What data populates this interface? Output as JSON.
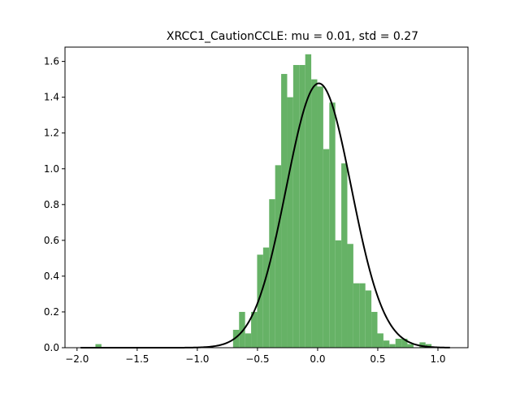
{
  "chart_data": {
    "type": "bar",
    "title": "XRCC1_CautionCCLE: mu = 0.01, std = 0.27",
    "xlabel": "",
    "ylabel": "",
    "xlim": [
      -2.1,
      1.25
    ],
    "ylim": [
      0,
      1.68
    ],
    "x_ticks": [
      -2.0,
      -1.5,
      -1.0,
      -0.5,
      0.0,
      0.5,
      1.0
    ],
    "x_tick_labels": [
      "−2.0",
      "−1.5",
      "−1.0",
      "−0.5",
      "0.0",
      "0.5",
      "1.0"
    ],
    "y_ticks": [
      0.0,
      0.2,
      0.4,
      0.6,
      0.8,
      1.0,
      1.2,
      1.4,
      1.6
    ],
    "y_tick_labels": [
      "0.0",
      "0.2",
      "0.4",
      "0.6",
      "0.8",
      "1.0",
      "1.2",
      "1.4",
      "1.6"
    ],
    "grid": false,
    "bar_color": "#66b266",
    "line_color": "#000000",
    "histogram": {
      "bin_edges": [
        -1.847,
        -1.797,
        -0.703,
        -0.653,
        -0.603,
        -0.553,
        -0.503,
        -0.453,
        -0.403,
        -0.353,
        -0.303,
        -0.253,
        -0.203,
        -0.153,
        -0.103,
        -0.053,
        -0.003,
        0.047,
        0.097,
        0.147,
        0.197,
        0.247,
        0.297,
        0.347,
        0.397,
        0.447,
        0.497,
        0.547,
        0.597,
        0.647,
        0.697,
        0.747,
        0.797,
        0.847,
        0.897,
        0.947
      ],
      "densities": [
        0.02,
        0,
        0.1,
        0.2,
        0.08,
        0.2,
        0.52,
        0.56,
        0.83,
        1.02,
        1.53,
        1.4,
        1.58,
        1.58,
        1.64,
        1.5,
        1.46,
        1.11,
        1.37,
        0.6,
        1.03,
        0.58,
        0.36,
        0.36,
        0.32,
        0.2,
        0.08,
        0.04,
        0.02,
        0.05,
        0.05,
        0.02,
        0.0,
        0.03,
        0.02
      ]
    },
    "fit_curve": {
      "label": "",
      "mu": 0.01,
      "std": 0.27,
      "x_range": [
        -1.97,
        1.1
      ]
    }
  }
}
